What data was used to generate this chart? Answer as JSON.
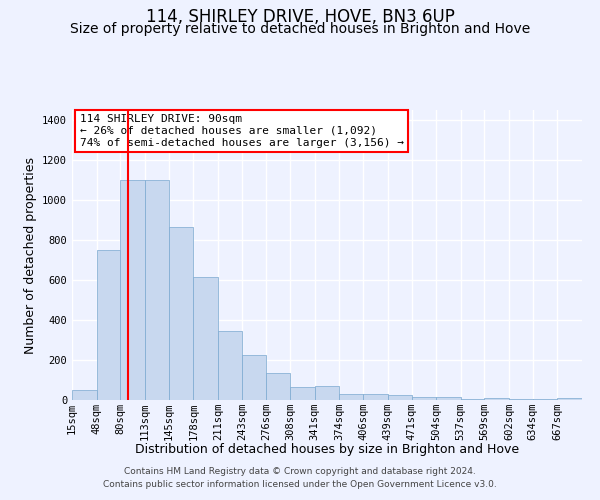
{
  "title": "114, SHIRLEY DRIVE, HOVE, BN3 6UP",
  "subtitle": "Size of property relative to detached houses in Brighton and Hove",
  "xlabel": "Distribution of detached houses by size in Brighton and Hove",
  "ylabel": "Number of detached properties",
  "footer1": "Contains HM Land Registry data © Crown copyright and database right 2024.",
  "footer2": "Contains public sector information licensed under the Open Government Licence v3.0.",
  "annotation_line1": "114 SHIRLEY DRIVE: 90sqm",
  "annotation_line2": "← 26% of detached houses are smaller (1,092)",
  "annotation_line3": "74% of semi-detached houses are larger (3,156) →",
  "bar_color": "#c8d8ef",
  "bar_edge_color": "#7aa8d0",
  "red_line_x": 90,
  "categories": [
    "15sqm",
    "48sqm",
    "80sqm",
    "113sqm",
    "145sqm",
    "178sqm",
    "211sqm",
    "243sqm",
    "276sqm",
    "308sqm",
    "341sqm",
    "374sqm",
    "406sqm",
    "439sqm",
    "471sqm",
    "504sqm",
    "537sqm",
    "569sqm",
    "602sqm",
    "634sqm",
    "667sqm"
  ],
  "bin_edges": [
    15,
    48,
    80,
    113,
    145,
    178,
    211,
    243,
    276,
    308,
    341,
    374,
    406,
    439,
    471,
    504,
    537,
    569,
    602,
    634,
    667,
    700
  ],
  "values": [
    50,
    750,
    1100,
    1100,
    865,
    615,
    345,
    225,
    135,
    65,
    70,
    30,
    30,
    25,
    15,
    15,
    5,
    10,
    5,
    5,
    10
  ],
  "ylim": [
    0,
    1450
  ],
  "yticks": [
    0,
    200,
    400,
    600,
    800,
    1000,
    1200,
    1400
  ],
  "bg_color": "#eef2ff",
  "grid_color": "#ffffff",
  "title_fontsize": 12,
  "subtitle_fontsize": 10,
  "axis_label_fontsize": 9,
  "tick_fontsize": 7.5,
  "footer_fontsize": 6.5,
  "annotation_fontsize": 8
}
